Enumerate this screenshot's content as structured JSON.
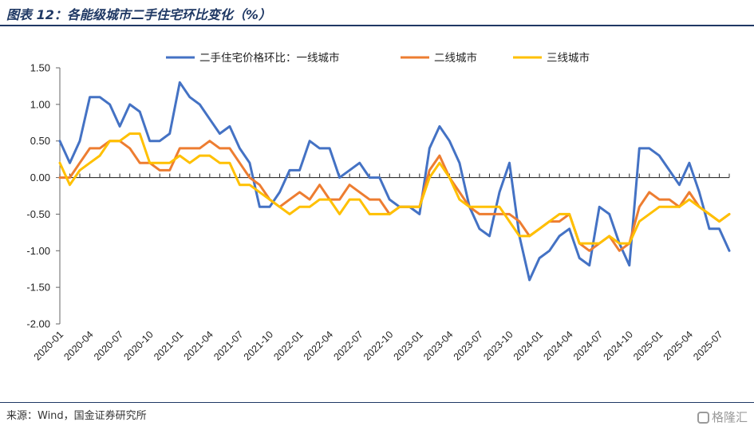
{
  "header": {
    "title": "图表 12：各能级城市二手住宅环比变化（%）"
  },
  "footer": {
    "source": "来源：Wind，国金证券研究所",
    "watermark": "格隆汇"
  },
  "chart_data": {
    "type": "line",
    "x": [
      "2020-01",
      "2020-02",
      "2020-03",
      "2020-04",
      "2020-05",
      "2020-06",
      "2020-07",
      "2020-08",
      "2020-09",
      "2020-10",
      "2020-11",
      "2020-12",
      "2021-01",
      "2021-02",
      "2021-03",
      "2021-04",
      "2021-05",
      "2021-06",
      "2021-07",
      "2021-08",
      "2021-09",
      "2021-10",
      "2021-11",
      "2021-12",
      "2022-01",
      "2022-02",
      "2022-03",
      "2022-04",
      "2022-05",
      "2022-06",
      "2022-07",
      "2022-08",
      "2022-09",
      "2022-10",
      "2022-11",
      "2022-12",
      "2023-01",
      "2023-02",
      "2023-03",
      "2023-04",
      "2023-05",
      "2023-06",
      "2023-07",
      "2023-08",
      "2023-09",
      "2023-10",
      "2023-11",
      "2023-12",
      "2024-01",
      "2024-02",
      "2024-03",
      "2024-04",
      "2024-05",
      "2024-06",
      "2024-07",
      "2024-08",
      "2024-09",
      "2024-10",
      "2024-11",
      "2024-12",
      "2025-01",
      "2025-02",
      "2025-03",
      "2025-04",
      "2025-05",
      "2025-06",
      "2025-07",
      "2025-08"
    ],
    "x_tick_labels": [
      "2020-01",
      "2020-04",
      "2020-07",
      "2020-10",
      "2021-01",
      "2021-04",
      "2021-07",
      "2021-10",
      "2022-01",
      "2022-04",
      "2022-07",
      "2022-10",
      "2023-01",
      "2023-04",
      "2023-07",
      "2023-10",
      "2024-01",
      "2024-04",
      "2024-07",
      "2024-10",
      "2025-01",
      "2025-04",
      "2025-07"
    ],
    "ylim": [
      -2.0,
      1.5
    ],
    "y_ticks": [
      "1.50",
      "1.00",
      "0.50",
      "0.00",
      "-0.50",
      "-1.00",
      "-1.50",
      "-2.00"
    ],
    "y_tick_values": [
      1.5,
      1.0,
      0.5,
      0.0,
      -0.5,
      -1.0,
      -1.5,
      -2.0
    ],
    "legend_position": "top",
    "grid": false,
    "series": [
      {
        "name": "二手住宅价格环比：一线城市",
        "color": "#4472c4",
        "values": [
          0.5,
          0.2,
          0.5,
          1.1,
          1.1,
          1.0,
          0.7,
          1.0,
          0.9,
          0.5,
          0.5,
          0.6,
          1.3,
          1.1,
          1.0,
          0.8,
          0.6,
          0.7,
          0.4,
          0.2,
          -0.4,
          -0.4,
          -0.2,
          0.1,
          0.1,
          0.5,
          0.4,
          0.4,
          0.0,
          0.1,
          0.2,
          0.0,
          0.0,
          -0.3,
          -0.4,
          -0.4,
          -0.5,
          0.4,
          0.7,
          0.5,
          0.2,
          -0.4,
          -0.7,
          -0.8,
          -0.2,
          0.2,
          -0.8,
          -1.4,
          -1.1,
          -1.0,
          -0.8,
          -0.7,
          -1.1,
          -1.2,
          -0.4,
          -0.5,
          -0.9,
          -1.2,
          0.4,
          0.4,
          0.3,
          0.1,
          -0.1,
          0.2,
          -0.2,
          -0.7,
          -0.7,
          -1.0
        ]
      },
      {
        "name": "二线城市",
        "color": "#ed7d31",
        "values": [
          0.0,
          0.0,
          0.2,
          0.4,
          0.4,
          0.5,
          0.5,
          0.4,
          0.2,
          0.2,
          0.1,
          0.1,
          0.4,
          0.4,
          0.4,
          0.5,
          0.4,
          0.4,
          0.2,
          0.0,
          -0.1,
          -0.3,
          -0.4,
          -0.3,
          -0.2,
          -0.3,
          -0.1,
          -0.3,
          -0.3,
          -0.1,
          -0.2,
          -0.3,
          -0.3,
          -0.5,
          -0.4,
          -0.4,
          -0.4,
          0.1,
          0.3,
          0.0,
          -0.2,
          -0.4,
          -0.5,
          -0.5,
          -0.5,
          -0.5,
          -0.6,
          -0.8,
          -0.7,
          -0.6,
          -0.6,
          -0.5,
          -0.9,
          -1.0,
          -0.9,
          -0.8,
          -1.0,
          -0.9,
          -0.4,
          -0.2,
          -0.3,
          -0.3,
          -0.4,
          -0.2,
          -0.4,
          -0.5,
          -0.6,
          -0.5
        ]
      },
      {
        "name": "三线城市",
        "color": "#ffc000",
        "values": [
          0.2,
          -0.1,
          0.1,
          0.2,
          0.3,
          0.5,
          0.5,
          0.6,
          0.6,
          0.2,
          0.2,
          0.2,
          0.3,
          0.2,
          0.3,
          0.3,
          0.2,
          0.2,
          -0.1,
          -0.1,
          -0.2,
          -0.3,
          -0.4,
          -0.5,
          -0.4,
          -0.4,
          -0.3,
          -0.3,
          -0.5,
          -0.3,
          -0.3,
          -0.5,
          -0.5,
          -0.5,
          -0.4,
          -0.4,
          -0.4,
          0.0,
          0.2,
          0.0,
          -0.3,
          -0.4,
          -0.4,
          -0.4,
          -0.4,
          -0.6,
          -0.8,
          -0.8,
          -0.7,
          -0.6,
          -0.5,
          -0.5,
          -0.9,
          -0.9,
          -0.9,
          -0.8,
          -0.9,
          -0.9,
          -0.6,
          -0.5,
          -0.4,
          -0.4,
          -0.4,
          -0.3,
          -0.4,
          -0.5,
          -0.6,
          -0.5
        ]
      }
    ]
  }
}
